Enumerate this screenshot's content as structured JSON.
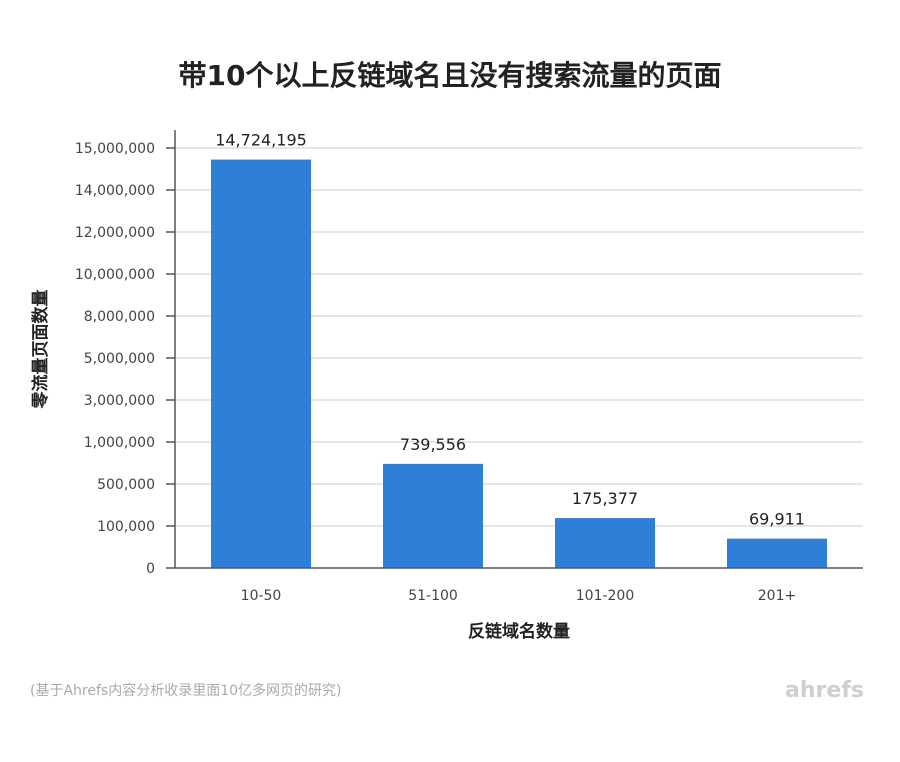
{
  "chart_data": {
    "type": "bar",
    "title": "带10个以上反链域名且没有搜索流量的页面",
    "xlabel": "反链域名数量",
    "ylabel": "零流量页面数量",
    "categories": [
      "10-50",
      "51-100",
      "101-200",
      "201+"
    ],
    "values": [
      14724195,
      739556,
      175377,
      69911
    ],
    "value_labels": [
      "14,724,195",
      "739,556",
      "175,377",
      "69,911"
    ],
    "y_ticks": [
      "0",
      "100,000",
      "500,000",
      "1,000,000",
      "3,000,000",
      "5,000,000",
      "8,000,000",
      "10,000,000",
      "12,000,000",
      "14,000,000",
      "15,000,000"
    ],
    "y_scale": "non-linear (evenly spaced tick labels)",
    "grid": true,
    "legend": "none",
    "bar_color": "#2F7ED8",
    "source_note": "(基于Ahrefs内容分析收录里面10亿多网页的研究)",
    "watermark": "ahrefs"
  }
}
